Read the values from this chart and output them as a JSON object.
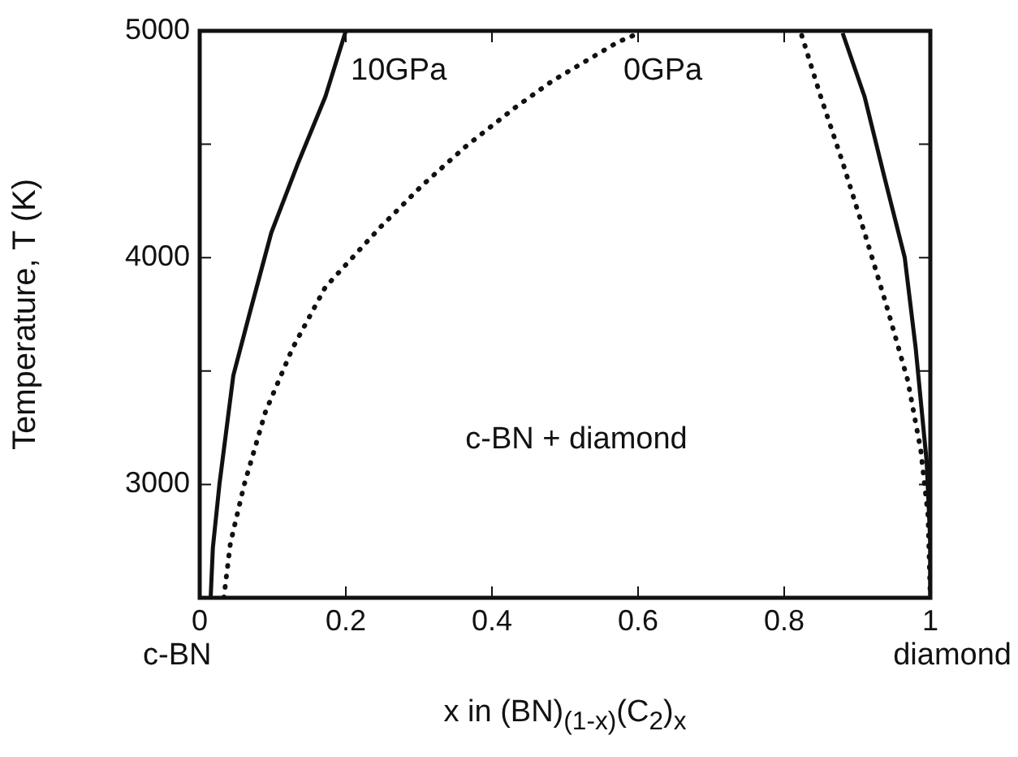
{
  "chart_data": {
    "type": "line",
    "xlabel": "x in (BN)$_{(1-x)}$(C$_{2}$)$_{x}$",
    "ylabel": "Temperature, T (K)",
    "xlim": [
      0,
      1
    ],
    "xticks": [
      0,
      0.2,
      0.4,
      0.6,
      0.8,
      1
    ],
    "ylim": [
      2500,
      5000
    ],
    "yticks": [
      {
        "value": 2500,
        "label": null
      },
      3000,
      {
        "value": 3500,
        "label": null
      },
      4000,
      {
        "value": 4500,
        "label": null
      },
      5000
    ],
    "grid": false,
    "legend": false,
    "marker": "none",
    "series": [
      {
        "color": "#111111",
        "line_style": "solid",
        "x": [
          0.015,
          0.018,
          0.027,
          0.046,
          0.068,
          0.098,
          0.135,
          0.172,
          0.2
        ],
        "values": [
          2500,
          2720,
          3000,
          3480,
          3750,
          4110,
          4420,
          4710,
          5000
        ]
      },
      {
        "color": "#111111",
        "line_style": "dotted",
        "x": [
          0.033,
          0.042,
          0.061,
          0.09,
          0.127,
          0.172,
          0.209,
          0.246,
          0.305,
          0.364,
          0.431,
          0.483,
          0.572,
          0.601
        ],
        "values": [
          2500,
          2740,
          3000,
          3320,
          3600,
          3870,
          4000,
          4130,
          4320,
          4490,
          4660,
          4780,
          4950,
          4990
        ]
      },
      {
        "color": "#111111",
        "line_style": "solid",
        "x": [
          0.88,
          0.91,
          0.936,
          0.965,
          0.98,
          0.995,
          1,
          1
        ],
        "values": [
          4990,
          4710,
          4370,
          4000,
          3600,
          3100,
          2740,
          2500
        ]
      },
      {
        "color": "#111111",
        "line_style": "dotted",
        "x": [
          0.824,
          0.85,
          0.88,
          0.91,
          0.939,
          0.969,
          0.987,
          0.997,
          1
        ],
        "values": [
          4980,
          4710,
          4420,
          4110,
          3800,
          3460,
          3150,
          2860,
          2500
        ]
      }
    ],
    "annotations": [
      "10GPa",
      "0GPa",
      "c-BN + diamond",
      "c-BN",
      "diamond"
    ]
  }
}
